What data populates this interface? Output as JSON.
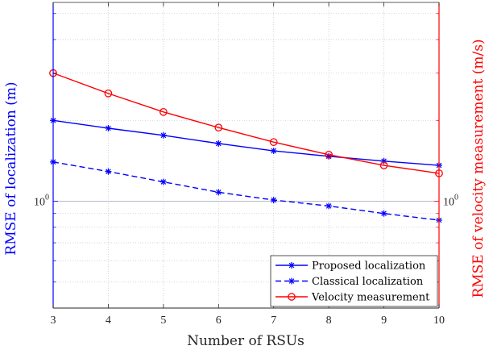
{
  "chart_data": {
    "type": "line",
    "title": "",
    "xlabel": "Number of RSUs",
    "ylabel_left": "RMSE of localization (m)",
    "ylabel_right": "RMSE of velocity measurement (m/s)",
    "x": [
      3,
      4,
      5,
      6,
      7,
      8,
      9,
      10
    ],
    "xlim": [
      3,
      10
    ],
    "yscale": "log",
    "ylim_left": [
      0.4,
      5.5
    ],
    "ylim_right": [
      0.4,
      5.5
    ],
    "y_tick_label_left": "10^0",
    "y_tick_label_right": "10^0",
    "grid": true,
    "legend_position": "bottom-right",
    "series": [
      {
        "name": "Proposed localization",
        "axis": "left",
        "color": "#0000ff",
        "line_style": "solid",
        "marker": "asterisk",
        "values": [
          2.0,
          1.87,
          1.76,
          1.64,
          1.54,
          1.47,
          1.41,
          1.36
        ]
      },
      {
        "name": "Classical localization",
        "axis": "left",
        "color": "#0000ff",
        "line_style": "dashed",
        "marker": "asterisk",
        "values": [
          1.4,
          1.29,
          1.18,
          1.08,
          1.01,
          0.96,
          0.9,
          0.85
        ]
      },
      {
        "name": "Velocity measurement",
        "axis": "right",
        "color": "#ff0000",
        "line_style": "solid",
        "marker": "circle",
        "values": [
          3.0,
          2.52,
          2.15,
          1.88,
          1.66,
          1.49,
          1.36,
          1.27
        ]
      }
    ]
  }
}
